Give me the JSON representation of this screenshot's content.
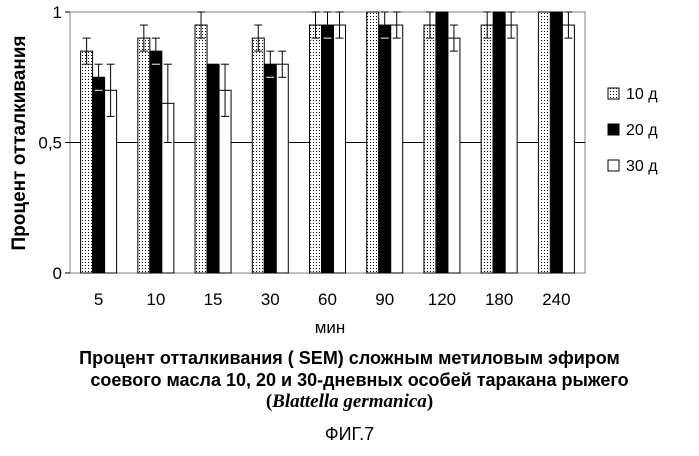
{
  "chart_data": {
    "type": "bar",
    "title": "",
    "xlabel": "мин",
    "ylabel": "Процент отталкивания",
    "ylim": [
      0,
      1
    ],
    "yticks": [
      "0",
      "0,5",
      "1"
    ],
    "grid": true,
    "legend_position": "right",
    "categories": [
      "5",
      "10",
      "15",
      "30",
      "60",
      "90",
      "120",
      "180",
      "240"
    ],
    "series": [
      {
        "name": "10 д",
        "values": [
          0.85,
          0.9,
          0.95,
          0.9,
          0.95,
          1.0,
          0.95,
          0.95,
          1.0
        ],
        "errors": [
          0.05,
          0.05,
          0.05,
          0.05,
          0.05,
          0.0,
          0.05,
          0.05,
          0.0
        ],
        "fill": "#ffffff",
        "pattern": "dotted"
      },
      {
        "name": "20 д",
        "values": [
          0.75,
          0.85,
          0.8,
          0.8,
          0.95,
          0.95,
          1.0,
          1.0,
          1.0
        ],
        "errors": [
          0.05,
          0.05,
          0.0,
          0.05,
          0.05,
          0.05,
          0.0,
          0.0,
          0.0
        ],
        "fill": "#000000",
        "pattern": "solid"
      },
      {
        "name": "30 д",
        "values": [
          0.7,
          0.65,
          0.7,
          0.8,
          0.95,
          0.95,
          0.9,
          0.95,
          0.95
        ],
        "errors": [
          0.1,
          0.15,
          0.1,
          0.05,
          0.05,
          0.05,
          0.05,
          0.05,
          0.05
        ],
        "fill": "#ffffff",
        "pattern": "open"
      }
    ]
  },
  "caption": {
    "line1": "Процент отталкивания ( SEM) сложным метиловым эфиром",
    "line2": "соевого масла 10, 20 и 30-дневных  особей таракана рыжего",
    "line3_open": "(",
    "line3_species": "Blattella germanica",
    "line3_close": ")"
  },
  "figure_label": "ФИГ.7"
}
